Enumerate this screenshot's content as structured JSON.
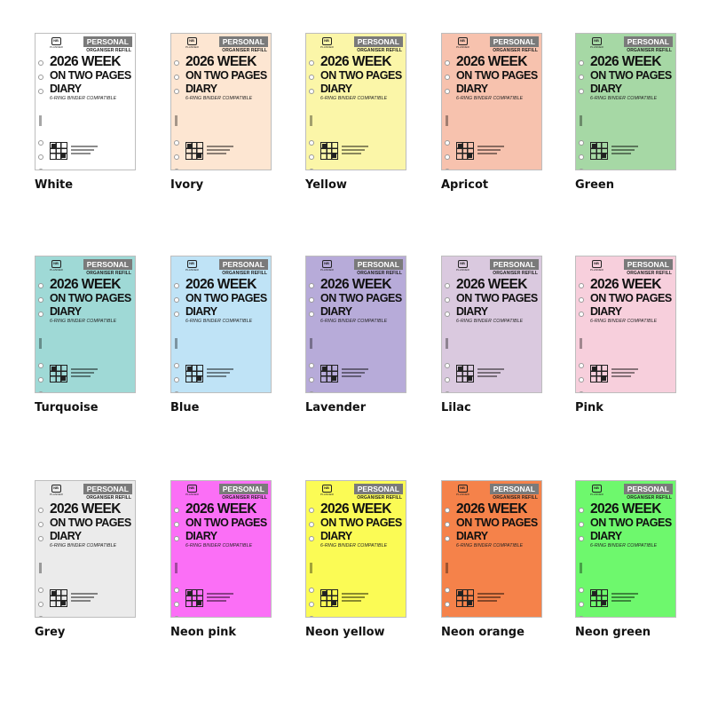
{
  "card": {
    "badge": "PERSONAL",
    "refill": "ORGANISER REFILL",
    "title_line1": "2026 WEEK",
    "title_line2": "ON TWO PAGES",
    "title_line3": "DIARY",
    "compat": "6-RING BINDER COMPATIBLE",
    "url": "www.NBplanner.com",
    "logo_mark": "NB",
    "logo_text": "PLANNER"
  },
  "colors": [
    {
      "name": "White",
      "hex": "#ffffff"
    },
    {
      "name": "Ivory",
      "hex": "#fde6d2"
    },
    {
      "name": "Yellow",
      "hex": "#fbf6a8"
    },
    {
      "name": "Apricot",
      "hex": "#f7c2ae"
    },
    {
      "name": "Green",
      "hex": "#a6d8a5"
    },
    {
      "name": "Turquoise",
      "hex": "#9fd9d6"
    },
    {
      "name": "Blue",
      "hex": "#bfe3f6"
    },
    {
      "name": "Lavender",
      "hex": "#b7abd9"
    },
    {
      "name": "Lilac",
      "hex": "#dac9df"
    },
    {
      "name": "Pink",
      "hex": "#f7cfdc"
    },
    {
      "name": "Grey",
      "hex": "#ebebeb"
    },
    {
      "name": "Neon pink",
      "hex": "#fb6ff6"
    },
    {
      "name": "Neon yellow",
      "hex": "#fbfb55"
    },
    {
      "name": "Neon orange",
      "hex": "#f5824a"
    },
    {
      "name": "Neon green",
      "hex": "#6ef86d"
    }
  ]
}
